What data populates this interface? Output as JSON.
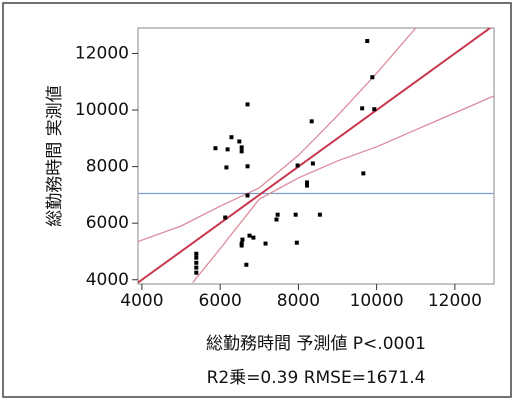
{
  "chart_data": {
    "type": "scatter",
    "y_label": "総勤務時間 実測値",
    "x_label": "総勤務時間 予測値 P<.0001",
    "stats": "R2乗=0.39 RMSE=1671.4",
    "xlim": [
      3900,
      13000
    ],
    "ylim": [
      3850,
      12900
    ],
    "xticks": [
      4000,
      6000,
      8000,
      10000,
      12000
    ],
    "yticks": [
      4000,
      6000,
      8000,
      10000,
      12000
    ],
    "series": [
      {
        "color": "#000000",
        "x": [
          9760,
          9890,
          9630,
          9940,
          6700,
          8340,
          9660,
          6290,
          6490,
          6550,
          5880,
          6190,
          6550,
          6160,
          6700,
          7980,
          8370,
          8220,
          8220,
          6700,
          7930,
          7470,
          7440,
          8550,
          6130,
          6750,
          6850,
          6570,
          6550,
          7160,
          7960,
          6670,
          5390,
          5390,
          5390,
          5390,
          5390,
          6550
        ],
        "values": [
          12440,
          11160,
          10060,
          10030,
          10200,
          9600,
          7760,
          9040,
          8890,
          8680,
          8650,
          8610,
          8540,
          7970,
          8010,
          8040,
          8110,
          7440,
          7330,
          6980,
          6300,
          6300,
          6130,
          6300,
          6200,
          5560,
          5490,
          5420,
          5280,
          5280,
          5310,
          4530,
          4920,
          4780,
          4600,
          4430,
          4250,
          5210
        ]
      }
    ],
    "fit_line": {
      "color": "#c8384f",
      "x": [
        3900,
        13000
      ],
      "values": [
        3900,
        13000
      ]
    },
    "confidence_upper": {
      "color": "#dc8c9c",
      "x": [
        3900,
        5000,
        6000,
        7000,
        8000,
        9000,
        10000,
        11000
      ],
      "values": [
        5350,
        5900,
        6600,
        7250,
        8400,
        9800,
        11300,
        12900
      ]
    },
    "confidence_lower": {
      "color": "#dc8c9c",
      "x": [
        5300,
        6000,
        7000,
        8000,
        9000,
        10000,
        11000,
        12000,
        13000
      ],
      "values": [
        3900,
        5100,
        6850,
        7600,
        8200,
        8700,
        9300,
        9900,
        10500
      ]
    },
    "mean_line": 7050,
    "mean_color": "#7a9fd0"
  }
}
